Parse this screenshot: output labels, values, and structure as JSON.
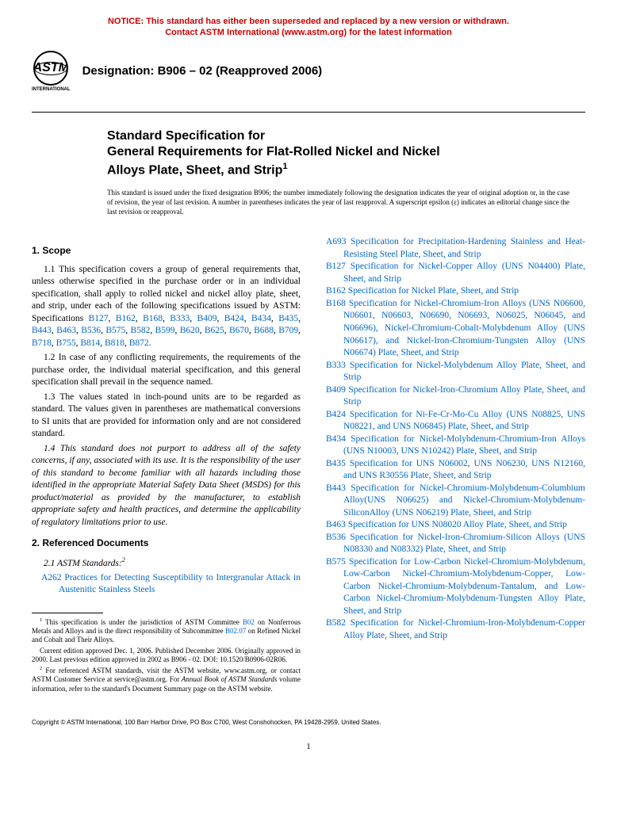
{
  "colors": {
    "notice": "#cc0000",
    "link": "#0066cc",
    "text": "#000000",
    "bg": "#ffffff"
  },
  "notice": {
    "line1": "NOTICE: This standard has either been superseded and replaced by a new version or withdrawn.",
    "line2": "Contact ASTM International (www.astm.org) for the latest information"
  },
  "logo": {
    "text": "ASTM",
    "sub": "INTERNATIONAL"
  },
  "designation": "Designation: B906 – 02 (Reapproved 2006)",
  "title": {
    "line1": "Standard Specification for",
    "line2": "General Requirements for Flat-Rolled Nickel and Nickel",
    "line3": "Alloys Plate, Sheet, and Strip",
    "sup": "1"
  },
  "issuance": "This standard is issued under the fixed designation B906; the number immediately following the designation indicates the year of original adoption or, in the case of revision, the year of last revision. A number in parentheses indicates the year of last reapproval. A superscript epsilon (ε) indicates an editorial change since the last revision or reapproval.",
  "scope": {
    "heading": "1. Scope",
    "p11_pre": "1.1 This specification covers a group of general requirements that, unless otherwise specified in the purchase order or in an individual specification, shall apply to rolled nickel and nickel alloy plate, sheet, and strip, under each of the following specifications issued by ASTM: Specifications ",
    "p11_links": [
      "B127",
      "B162",
      "B168",
      "B333",
      "B409",
      "B424",
      "B434",
      "B435",
      "B443",
      "B463",
      "B536",
      "B575",
      "B582",
      "B599",
      "B620",
      "B625",
      "B670",
      "B688",
      "B709",
      "B718",
      "B755",
      "B814",
      "B818",
      "B872"
    ],
    "p12": "1.2 In case of any conflicting requirements, the requirements of the purchase order, the individual material specification, and this general specification shall prevail in the sequence named.",
    "p13": "1.3  The values stated in inch-pound units are to be regarded as standard. The values given in parentheses are mathematical conversions to SI units that are provided for information only and are not considered standard.",
    "p14": "1.4 This standard does not purport to address all of the safety concerns, if any, associated with its use. It is the responsibility of the user of this standard to become familiar with all hazards including those identified in the appropriate Material Safety Data Sheet (MSDS) for this product/material as provided by the manufacturer, to establish appropriate safety and health practices, and determine the applicability of regulatory limitations prior to use."
  },
  "refdocs": {
    "heading": "2. Referenced Documents",
    "sub": "2.1 ASTM Standards:",
    "supnote": "2",
    "left_refs": [
      {
        "code": "A262",
        "title": "Practices for Detecting Susceptibility to Intergranular Attack in Austenitic Stainless Steels"
      }
    ],
    "right_refs": [
      {
        "code": "A693",
        "title": "Specification for Precipitation-Hardening Stainless and Heat-Resisting Steel Plate, Sheet, and Strip"
      },
      {
        "code": "B127",
        "title": "Specification for Nickel-Copper Alloy (UNS N04400) Plate, Sheet, and Strip"
      },
      {
        "code": "B162",
        "title": "Specification for Nickel Plate, Sheet, and Strip"
      },
      {
        "code": "B168",
        "title": "Specification for Nickel-Chromium-Iron Alloys (UNS N06600, N06601, N06603, N06690, N06693, N06025, N06045, and N06696), Nickel-Chromium-Cobalt-Molybdenum Alloy (UNS N06617), and Nickel-Iron-Chromium-Tungsten Alloy (UNS N06674) Plate, Sheet, and Strip"
      },
      {
        "code": "B333",
        "title": "Specification for Nickel-Molybdenum Alloy Plate, Sheet, and Strip"
      },
      {
        "code": "B409",
        "title": "Specification for Nickel-Iron-Chromium Alloy Plate, Sheet, and Strip"
      },
      {
        "code": "B424",
        "title": "Specification for Ni-Fe-Cr-Mo-Cu Alloy (UNS N08825, UNS N08221, and UNS N06845) Plate, Sheet, and Strip"
      },
      {
        "code": "B434",
        "title": "Specification for Nickel-Molybdenum-Chromium-Iron Alloys (UNS N10003, UNS N10242) Plate, Sheet, and Strip"
      },
      {
        "code": "B435",
        "title": "Specification for UNS N06002, UNS N06230, UNS N12160, and UNS R30556 Plate, Sheet, and Strip"
      },
      {
        "code": "B443",
        "title": "Specification for Nickel-Chromium-Molybdenum-Columbium Alloy(UNS N06625) and Nickel-Chromium-Molybdenum-SiliconAlloy (UNS N06219) Plate, Sheet, and Strip"
      },
      {
        "code": "B463",
        "title": "Specification for UNS N08020 Alloy Plate, Sheet, and Strip"
      },
      {
        "code": "B536",
        "title": "Specification for Nickel-Iron-Chromium-Silicon Alloys (UNS N08330 and N08332) Plate, Sheet, and Strip"
      },
      {
        "code": "B575",
        "title": "Specification for Low-Carbon Nickel-Chromium-Molybdenum, Low-Carbon Nickel-Chromium-Molybdenum-Copper, Low-Carbon Nickel-Chromium-Molybdenum-Tantalum, and Low-Carbon Nickel-Chromium-Molybdenum-Tungsten Alloy Plate, Sheet, and Strip"
      },
      {
        "code": "B582",
        "title": "Specification for Nickel-Chromium-Iron-Molybdenum-Copper Alloy Plate, Sheet, and Strip"
      }
    ]
  },
  "footnotes": {
    "f1_pre": "This specification is under the jurisdiction of ASTM Committee ",
    "f1_link1": "B02",
    "f1_mid": " on Nonferrous Metals and Alloys and is the direct responsibility of Subcommittee ",
    "f1_link2": "B02.07",
    "f1_post": " on Refined Nickel and Cobalt and Their Alloys.",
    "f2": "Current edition approved Dec. 1, 2006. Published December 2006. Originally approved in 2000. Last previous edition approved in 2002 as B906 - 02. DOI: 10.1520/B0906-02R06.",
    "f3_pre": "For referenced ASTM standards, visit the ASTM website, www.astm.org, or contact ASTM Customer Service at service@astm.org. For ",
    "f3_italic": "Annual Book of ASTM Standards",
    "f3_post": " volume information, refer to the standard's Document Summary page on the ASTM website."
  },
  "copyright": "Copyright © ASTM International, 100 Barr Harbor Drive, PO Box C700, West Conshohocken, PA 19428-2959, United States.",
  "pagenum": "1"
}
